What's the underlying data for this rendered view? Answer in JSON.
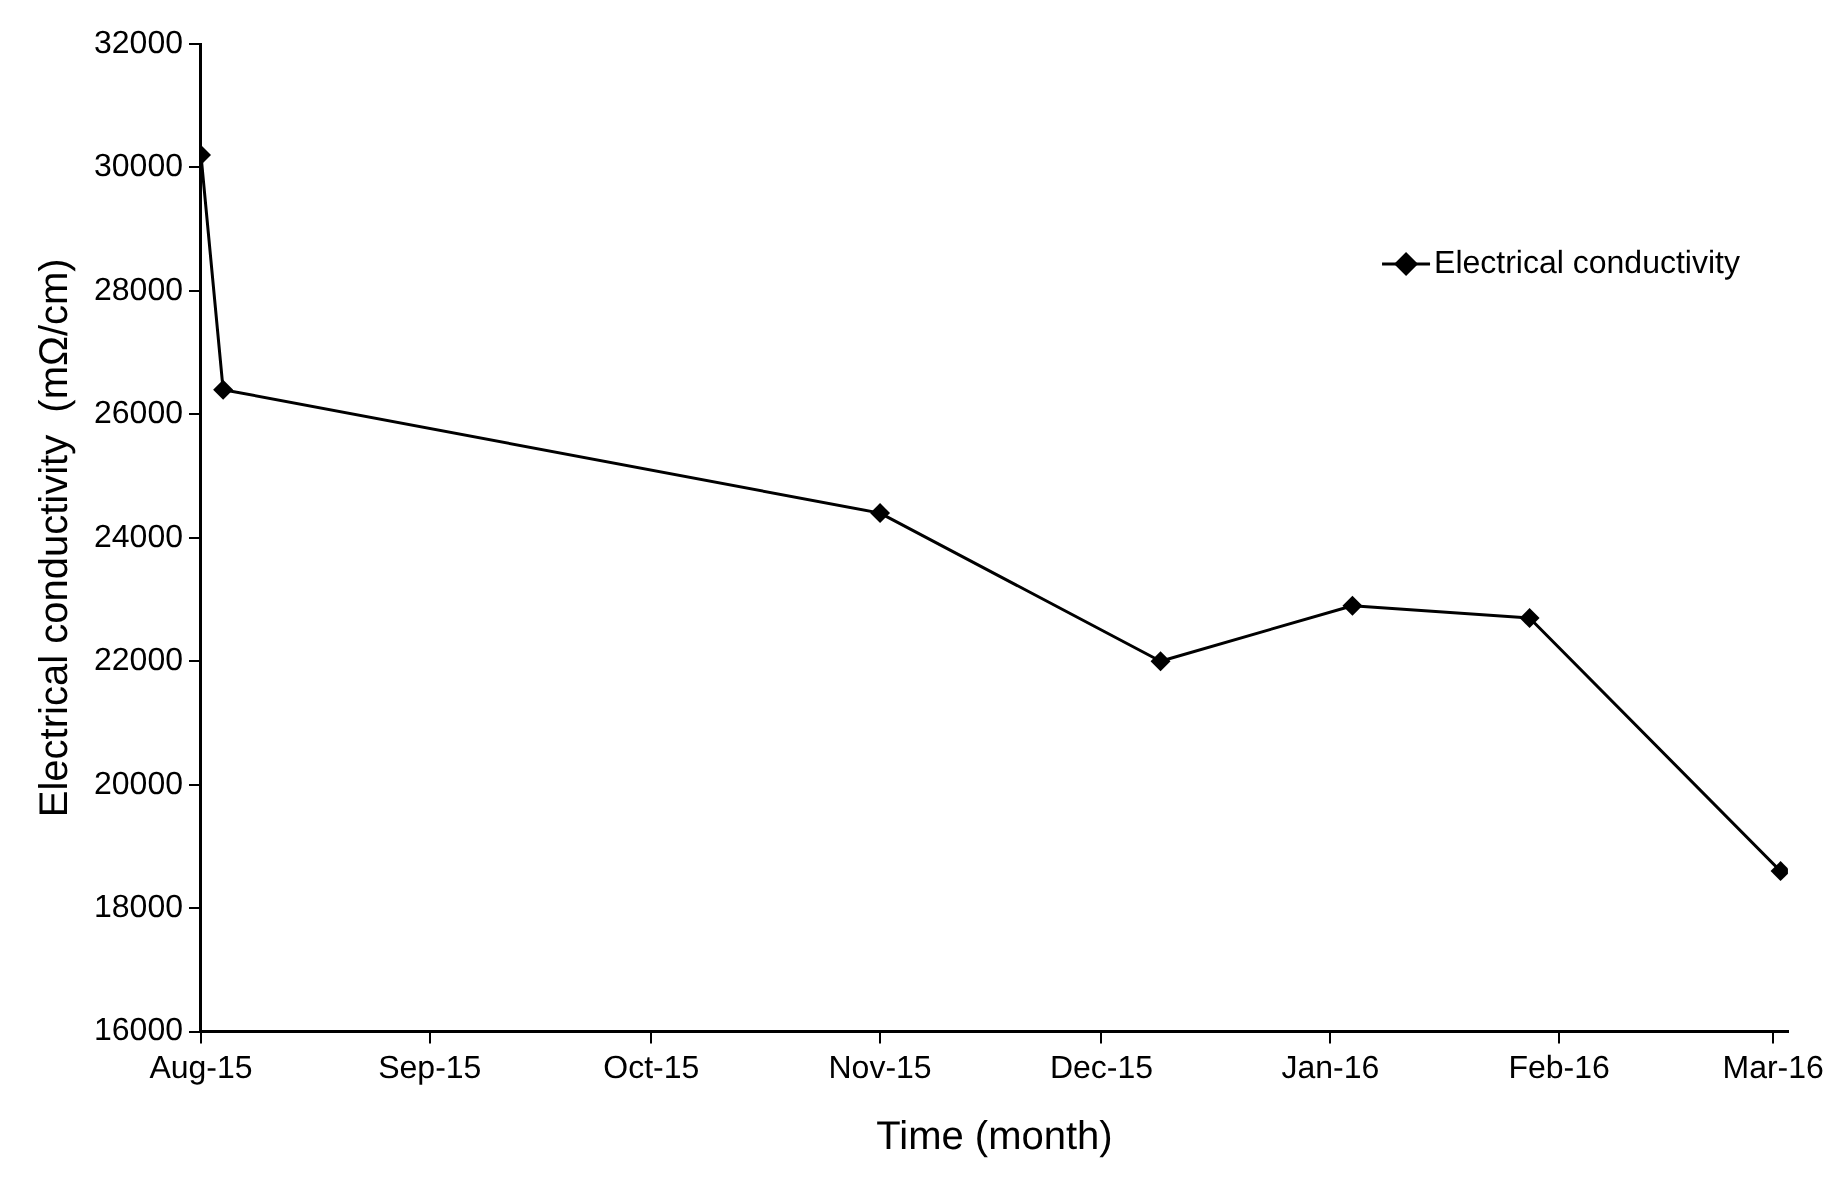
{
  "chart_data": {
    "type": "line",
    "xlabel": "Time (month)",
    "ylabel": "Electrical conductivity  (mΩ/cm)",
    "x": [
      "2015-08-01",
      "2015-08-04",
      "2015-11-01",
      "2015-12-09",
      "2016-01-04",
      "2016-01-28",
      "2016-03-02"
    ],
    "series": [
      {
        "name": "Electrical conductivity",
        "color": "#000000",
        "values": [
          30200,
          26400,
          24400,
          22000,
          22900,
          22700,
          18600
        ]
      }
    ],
    "xlim": [
      "2015-08-01",
      "2016-03-03"
    ],
    "xticks": [
      {
        "value": "2015-08-01",
        "label": "Aug-15"
      },
      {
        "value": "2015-09-01",
        "label": "Sep-15"
      },
      {
        "value": "2015-10-01",
        "label": "Oct-15"
      },
      {
        "value": "2015-11-01",
        "label": "Nov-15"
      },
      {
        "value": "2015-12-01",
        "label": "Dec-15"
      },
      {
        "value": "2016-01-01",
        "label": "Jan-16"
      },
      {
        "value": "2016-02-01",
        "label": "Feb-16"
      },
      {
        "value": "2016-03-01",
        "label": "Mar-16"
      }
    ],
    "ylim": [
      16000,
      32000
    ],
    "yticks": [
      16000,
      18000,
      20000,
      22000,
      24000,
      26000,
      28000,
      30000,
      32000
    ],
    "grid": false,
    "legend": "top right",
    "marker": "diamond",
    "line_style": "solid"
  }
}
